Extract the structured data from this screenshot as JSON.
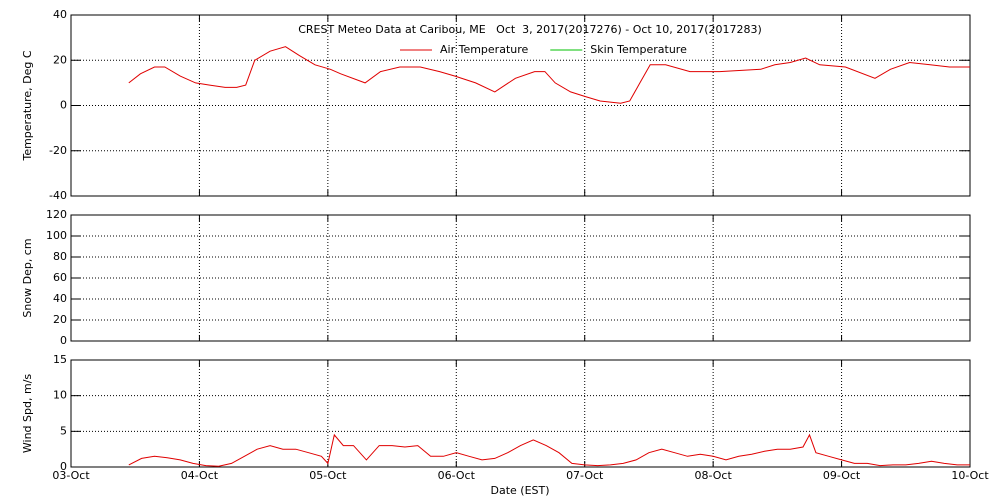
{
  "chart_data": [
    {
      "type": "line",
      "title": "CREST Meteo Data at Caribou, ME   Oct  3, 2017(2017276) - Oct 10, 2017(2017283)",
      "ylabel": "Temperature, Deg C",
      "ylim": [
        -40,
        40
      ],
      "yticks": [
        -40,
        -20,
        0,
        20,
        40
      ],
      "grid": true,
      "x": [
        0.45,
        0.54,
        0.65,
        0.73,
        0.85,
        0.97,
        1.08,
        1.2,
        1.29,
        1.36,
        1.43,
        1.55,
        1.67,
        1.78,
        1.9,
        2.02,
        2.1,
        2.29,
        2.41,
        2.56,
        2.72,
        2.87,
        2.99,
        3.15,
        3.3,
        3.46,
        3.61,
        3.69,
        3.77,
        3.89,
        4.0,
        4.12,
        4.28,
        4.35,
        4.43,
        4.51,
        4.63,
        4.82,
        5.05,
        5.37,
        5.48,
        5.6,
        5.72,
        5.83,
        6.03,
        6.26,
        6.38,
        6.53,
        6.69,
        6.84,
        7.0
      ],
      "series": [
        {
          "name": "Air Temperature",
          "color": "#e00000",
          "values": [
            10,
            14,
            17,
            17,
            13,
            10,
            9,
            8,
            8,
            9,
            20,
            24,
            26,
            22,
            18,
            16,
            14,
            10,
            15,
            17,
            17,
            15,
            13,
            10,
            6,
            12,
            15,
            15,
            10,
            6,
            4,
            2,
            1,
            2,
            10,
            18,
            18,
            15,
            15,
            16,
            18,
            19,
            21,
            18,
            17,
            12,
            16,
            19,
            18,
            17,
            17
          ]
        },
        {
          "name": "Skin Temperature",
          "color": "#00c000",
          "values": [
            null,
            null,
            null,
            null,
            null,
            null,
            null,
            null,
            null,
            null,
            null,
            null,
            null,
            null,
            null,
            null,
            null,
            null,
            null,
            null,
            null,
            null,
            null,
            null,
            null,
            null,
            null,
            null,
            null,
            null,
            null,
            null,
            null,
            null,
            null,
            null,
            null,
            null,
            null,
            null,
            null,
            null,
            null,
            null,
            null,
            null,
            null,
            null,
            null,
            null,
            null
          ]
        }
      ]
    },
    {
      "type": "line",
      "ylabel": "Snow Dep, cm",
      "ylim": [
        0,
        120
      ],
      "yticks": [
        0,
        20,
        40,
        60,
        80,
        100,
        120
      ],
      "grid": true,
      "series": []
    },
    {
      "type": "line",
      "ylabel": "Wind Spd, m/s",
      "xlabel": "Date (EST)",
      "ylim": [
        0,
        15
      ],
      "yticks": [
        0,
        5,
        10,
        15
      ],
      "grid": true,
      "xlim": [
        0,
        7
      ],
      "xticks": [
        {
          "value": 0,
          "label": "03-Oct"
        },
        {
          "value": 1,
          "label": "04-Oct"
        },
        {
          "value": 2,
          "label": "05-Oct"
        },
        {
          "value": 3,
          "label": "06-Oct"
        },
        {
          "value": 4,
          "label": "07-Oct"
        },
        {
          "value": 5,
          "label": "08-Oct"
        },
        {
          "value": 6,
          "label": "09-Oct"
        },
        {
          "value": 7,
          "label": "10-Oct"
        }
      ],
      "x": [
        0.45,
        0.55,
        0.65,
        0.75,
        0.85,
        0.95,
        1.05,
        1.15,
        1.25,
        1.35,
        1.45,
        1.55,
        1.65,
        1.75,
        1.85,
        1.95,
        2.0,
        2.05,
        2.12,
        2.2,
        2.3,
        2.4,
        2.5,
        2.6,
        2.7,
        2.8,
        2.9,
        3.0,
        3.1,
        3.2,
        3.3,
        3.4,
        3.5,
        3.6,
        3.7,
        3.8,
        3.9,
        4.0,
        4.1,
        4.2,
        4.3,
        4.4,
        4.5,
        4.6,
        4.7,
        4.8,
        4.9,
        5.0,
        5.1,
        5.2,
        5.3,
        5.4,
        5.5,
        5.6,
        5.7,
        5.75,
        5.8,
        5.9,
        6.0,
        6.1,
        6.2,
        6.3,
        6.4,
        6.5,
        6.6,
        6.7,
        6.8,
        6.9,
        7.0
      ],
      "series": [
        {
          "color": "#e00000",
          "values": [
            0.3,
            1.2,
            1.5,
            1.3,
            1.0,
            0.5,
            0.2,
            0.1,
            0.5,
            1.5,
            2.5,
            3,
            2.5,
            2.5,
            2,
            1.5,
            0.5,
            4.5,
            3,
            3,
            1,
            3,
            3,
            2.8,
            3,
            1.5,
            1.5,
            2,
            1.5,
            1,
            1.2,
            2,
            3,
            3.8,
            3,
            2,
            0.5,
            0.3,
            0.2,
            0.3,
            0.5,
            1,
            2,
            2.5,
            2,
            1.5,
            1.8,
            1.5,
            1,
            1.5,
            1.8,
            2.2,
            2.5,
            2.5,
            2.8,
            4.5,
            2,
            1.5,
            1,
            0.5,
            0.5,
            0.2,
            0.3,
            0.3,
            0.5,
            0.8,
            0.5,
            0.3,
            0.3
          ]
        }
      ]
    }
  ]
}
